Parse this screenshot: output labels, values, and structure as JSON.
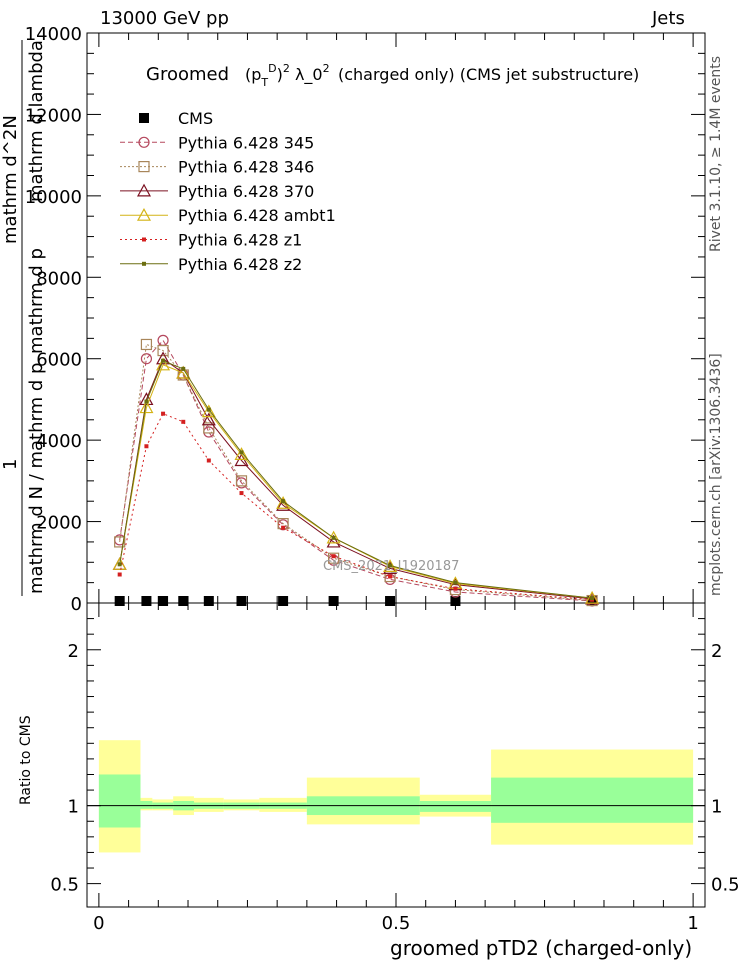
{
  "header": {
    "left": "13000 GeV pp",
    "right": "Jets"
  },
  "side_labels": {
    "rivet": "Rivet 3.1.10, ≥ 1.4M events",
    "mcplots": "mcplots.cern.ch [arXiv:1306.3436]"
  },
  "chart_data": [
    {
      "type": "line",
      "panel": "main",
      "title": "Groomed (p_T^D)^2 λ_0^2 (charged only) (CMS jet substructure)",
      "title_main": "Groomed",
      "title_formula": "(p",
      "title_rest": "(charged only) (CMS jet substructure)",
      "ylabel_num": "mathrm d^2N",
      "ylabel_den_left": "mathrm d N / mathrm d p",
      "ylabel_den_right": "mathrm d p",
      "ylabel_lambda": "mathrm d lambda",
      "ylabel_one": "1",
      "watermark": "CMS_2021_I1920187",
      "xlim": [
        -0.02,
        1.02
      ],
      "ylim": [
        0,
        14000
      ],
      "y_ticks": [
        0,
        2000,
        4000,
        6000,
        8000,
        10000,
        12000,
        14000
      ],
      "y_tick_labels": [
        "0",
        "2000",
        "4000",
        "6000",
        "8000",
        "10000",
        "12000",
        "14000"
      ],
      "legend_position": "top-left",
      "series": [
        {
          "name": "CMS",
          "color": "#000000",
          "marker": "square",
          "x": [
            0.035,
            0.08,
            0.108,
            0.142,
            0.185,
            0.24,
            0.31,
            0.395,
            0.49,
            0.6,
            0.83
          ],
          "values": [
            0,
            0,
            0,
            0,
            0,
            0,
            0,
            0,
            0,
            0,
            0
          ]
        },
        {
          "name": "Pythia 6.428 345",
          "color": "#b5485e",
          "marker": "circle",
          "dash": "5,3",
          "x": [
            0.035,
            0.08,
            0.108,
            0.142,
            0.185,
            0.24,
            0.31,
            0.395,
            0.49,
            0.6,
            0.83
          ],
          "values": [
            1550,
            6000,
            6450,
            5600,
            4200,
            2950,
            1920,
            1050,
            580,
            270,
            50
          ]
        },
        {
          "name": "Pythia 6.428 346",
          "color": "#a8865a",
          "marker": "square-open",
          "dash": "2,2",
          "x": [
            0.035,
            0.08,
            0.108,
            0.142,
            0.185,
            0.24,
            0.31,
            0.395,
            0.49,
            0.6,
            0.83
          ],
          "values": [
            1500,
            6350,
            6200,
            5600,
            4300,
            3000,
            1950,
            1100,
            650,
            330,
            60
          ]
        },
        {
          "name": "Pythia 6.428 370",
          "color": "#7b1020",
          "marker": "triangle",
          "dash": "",
          "x": [
            0.035,
            0.08,
            0.108,
            0.142,
            0.185,
            0.24,
            0.31,
            0.395,
            0.49,
            0.6,
            0.83
          ],
          "values": [
            950,
            5000,
            6000,
            5650,
            4500,
            3500,
            2400,
            1500,
            850,
            450,
            100
          ]
        },
        {
          "name": "Pythia 6.428 ambt1",
          "color": "#d4b316",
          "marker": "triangle",
          "dash": "",
          "x": [
            0.035,
            0.08,
            0.108,
            0.142,
            0.185,
            0.24,
            0.31,
            0.395,
            0.49,
            0.6,
            0.83
          ],
          "values": [
            950,
            4800,
            5850,
            5650,
            4700,
            3650,
            2450,
            1600,
            900,
            480,
            120
          ]
        },
        {
          "name": "Pythia 6.428 z1",
          "color": "#d42020",
          "marker": "dot",
          "dash": "2,3",
          "x": [
            0.035,
            0.08,
            0.108,
            0.142,
            0.185,
            0.24,
            0.31,
            0.395,
            0.49,
            0.6,
            0.83
          ],
          "values": [
            700,
            3850,
            4650,
            4450,
            3500,
            2700,
            1850,
            1150,
            650,
            350,
            80
          ]
        },
        {
          "name": "Pythia 6.428 z2",
          "color": "#6b6e10",
          "marker": "dot",
          "dash": "",
          "x": [
            0.035,
            0.08,
            0.108,
            0.142,
            0.185,
            0.24,
            0.31,
            0.395,
            0.49,
            0.6,
            0.83
          ],
          "values": [
            950,
            4950,
            5950,
            5750,
            4750,
            3700,
            2500,
            1600,
            920,
            500,
            120
          ]
        }
      ]
    },
    {
      "type": "band",
      "panel": "ratio",
      "ylabel": "Ratio to CMS",
      "xlabel": "groomed pTD2 (charged-only)",
      "xlim": [
        -0.02,
        1.02
      ],
      "ylim": [
        0.35,
        2.3
      ],
      "x_ticks": [
        0,
        0.5,
        1
      ],
      "x_tick_labels": [
        "0",
        "0.5",
        "1"
      ],
      "y_ticks": [
        0.5,
        1,
        2
      ],
      "y_tick_labels": [
        "0.5",
        "1",
        "2"
      ],
      "reference_line": 1,
      "bins": [
        {
          "xlo": 0.0,
          "xhi": 0.07,
          "inner": [
            0.86,
            1.2
          ],
          "outer": [
            0.7,
            1.42
          ]
        },
        {
          "xlo": 0.07,
          "xhi": 0.09,
          "inner": [
            0.98,
            1.03
          ],
          "outer": [
            0.97,
            1.05
          ]
        },
        {
          "xlo": 0.09,
          "xhi": 0.125,
          "inner": [
            0.98,
            1.02
          ],
          "outer": [
            0.97,
            1.04
          ]
        },
        {
          "xlo": 0.125,
          "xhi": 0.16,
          "inner": [
            0.97,
            1.03
          ],
          "outer": [
            0.94,
            1.06
          ]
        },
        {
          "xlo": 0.16,
          "xhi": 0.21,
          "inner": [
            0.98,
            1.02
          ],
          "outer": [
            0.96,
            1.05
          ]
        },
        {
          "xlo": 0.21,
          "xhi": 0.27,
          "inner": [
            0.98,
            1.02
          ],
          "outer": [
            0.97,
            1.04
          ]
        },
        {
          "xlo": 0.27,
          "xhi": 0.35,
          "inner": [
            0.98,
            1.02
          ],
          "outer": [
            0.96,
            1.05
          ]
        },
        {
          "xlo": 0.35,
          "xhi": 0.54,
          "inner": [
            0.94,
            1.06
          ],
          "outer": [
            0.88,
            1.18
          ]
        },
        {
          "xlo": 0.54,
          "xhi": 0.66,
          "inner": [
            0.96,
            1.03
          ],
          "outer": [
            0.93,
            1.07
          ]
        },
        {
          "xlo": 0.66,
          "xhi": 1.0,
          "inner": [
            0.89,
            1.18
          ],
          "outer": [
            0.75,
            1.36
          ]
        }
      ]
    }
  ]
}
